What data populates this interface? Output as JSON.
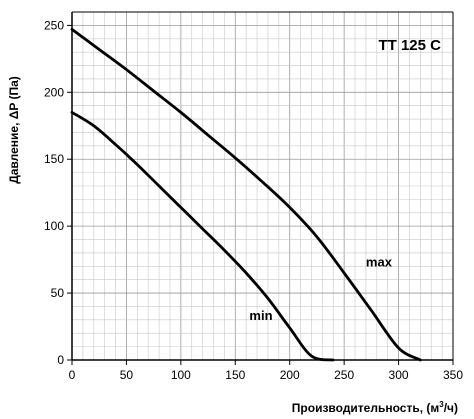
{
  "chart_data": {
    "type": "line",
    "title": "TT 125 C",
    "xlabel_main": "Производительность, (м",
    "xlabel_sup": "3",
    "xlabel_end": "/ч)",
    "ylabel": "Давление, ΔP (Па)",
    "xlim": [
      0,
      350
    ],
    "ylim": [
      0,
      260
    ],
    "x_ticks": [
      0,
      50,
      100,
      150,
      200,
      250,
      300,
      350
    ],
    "y_ticks": [
      0,
      50,
      100,
      150,
      200,
      250
    ],
    "x_tick_labels": [
      "0",
      "50",
      "100",
      "150",
      "200",
      "250",
      "300",
      "350"
    ],
    "y_tick_labels": [
      "0",
      "50",
      "100",
      "150",
      "200",
      "250"
    ],
    "grid": true,
    "series": [
      {
        "name": "max",
        "x": [
          0,
          25,
          50,
          75,
          100,
          125,
          150,
          175,
          200,
          225,
          250,
          275,
          300,
          320
        ],
        "y": [
          247,
          232,
          217,
          201,
          185,
          168,
          151,
          133,
          114,
          92,
          65,
          37,
          9,
          0
        ]
      },
      {
        "name": "min",
        "x": [
          0,
          20,
          40,
          60,
          80,
          100,
          120,
          140,
          160,
          180,
          200,
          220,
          240
        ],
        "y": [
          185,
          175,
          161,
          146,
          130,
          114,
          98,
          82,
          65,
          46,
          24,
          3,
          0
        ]
      }
    ],
    "annotations": [
      {
        "text": "max",
        "x": 270,
        "y": 70
      },
      {
        "text": "min",
        "x": 163,
        "y": 30
      }
    ]
  }
}
